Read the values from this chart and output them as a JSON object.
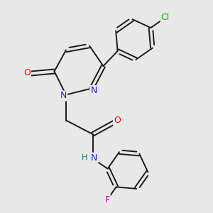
{
  "background_color": "#e8e8e8",
  "bond_color": "#1a1a1a",
  "atom_colors": {
    "N": "#2020ff",
    "O": "#ff0000",
    "Cl": "#00bb00",
    "F": "#bb00bb",
    "H": "#207070",
    "C": "#1a1a1a"
  }
}
